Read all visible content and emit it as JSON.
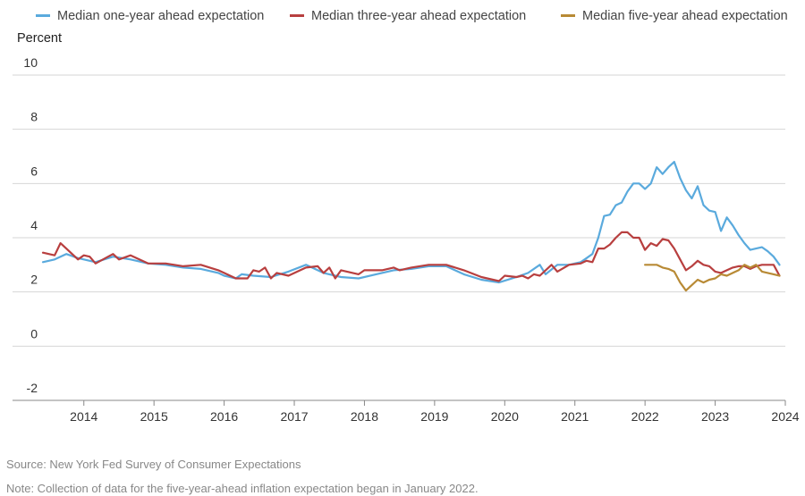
{
  "chart_data": {
    "type": "line",
    "ylabel": "Percent",
    "ylim": [
      -2,
      10
    ],
    "yticks": [
      -2,
      0,
      2,
      4,
      6,
      8,
      10
    ],
    "xlim": [
      "2013-06",
      "2024-01"
    ],
    "xticks": [
      "2014",
      "2015",
      "2016",
      "2017",
      "2018",
      "2019",
      "2020",
      "2021",
      "2022",
      "2023",
      "2024"
    ],
    "grid": "horizontal",
    "legend_position": "top",
    "series": [
      {
        "name": "Median one-year ahead expectation",
        "color": "#5aaadd",
        "points": [
          [
            "2013-06",
            3.1
          ],
          [
            "2013-08",
            3.2
          ],
          [
            "2013-10",
            3.4
          ],
          [
            "2013-12",
            3.25
          ],
          [
            "2014-03",
            3.1
          ],
          [
            "2014-06",
            3.3
          ],
          [
            "2014-09",
            3.2
          ],
          [
            "2014-12",
            3.05
          ],
          [
            "2015-03",
            3.0
          ],
          [
            "2015-06",
            2.9
          ],
          [
            "2015-09",
            2.85
          ],
          [
            "2015-12",
            2.7
          ],
          [
            "2016-01",
            2.6
          ],
          [
            "2016-02",
            2.55
          ],
          [
            "2016-03",
            2.5
          ],
          [
            "2016-04",
            2.65
          ],
          [
            "2016-06",
            2.6
          ],
          [
            "2016-09",
            2.55
          ],
          [
            "2016-12",
            2.75
          ],
          [
            "2017-03",
            3.0
          ],
          [
            "2017-06",
            2.7
          ],
          [
            "2017-09",
            2.55
          ],
          [
            "2017-12",
            2.5
          ],
          [
            "2018-03",
            2.65
          ],
          [
            "2018-06",
            2.8
          ],
          [
            "2018-09",
            2.85
          ],
          [
            "2018-12",
            2.95
          ],
          [
            "2019-03",
            2.95
          ],
          [
            "2019-06",
            2.65
          ],
          [
            "2019-09",
            2.45
          ],
          [
            "2019-12",
            2.35
          ],
          [
            "2020-03",
            2.55
          ],
          [
            "2020-05",
            2.7
          ],
          [
            "2020-07",
            3.0
          ],
          [
            "2020-08",
            2.65
          ],
          [
            "2020-10",
            3.0
          ],
          [
            "2020-12",
            3.0
          ],
          [
            "2021-01",
            3.05
          ],
          [
            "2021-02",
            3.1
          ],
          [
            "2021-03",
            3.25
          ],
          [
            "2021-04",
            3.4
          ],
          [
            "2021-05",
            4.0
          ],
          [
            "2021-06",
            4.8
          ],
          [
            "2021-07",
            4.85
          ],
          [
            "2021-08",
            5.2
          ],
          [
            "2021-09",
            5.3
          ],
          [
            "2021-10",
            5.7
          ],
          [
            "2021-11",
            6.0
          ],
          [
            "2021-12",
            6.0
          ],
          [
            "2022-01",
            5.8
          ],
          [
            "2022-02",
            6.0
          ],
          [
            "2022-03",
            6.6
          ],
          [
            "2022-04",
            6.35
          ],
          [
            "2022-05",
            6.6
          ],
          [
            "2022-06",
            6.8
          ],
          [
            "2022-07",
            6.2
          ],
          [
            "2022-08",
            5.75
          ],
          [
            "2022-09",
            5.45
          ],
          [
            "2022-10",
            5.9
          ],
          [
            "2022-11",
            5.2
          ],
          [
            "2022-12",
            5.0
          ],
          [
            "2023-01",
            4.95
          ],
          [
            "2023-02",
            4.25
          ],
          [
            "2023-03",
            4.75
          ],
          [
            "2023-04",
            4.45
          ],
          [
            "2023-05",
            4.1
          ],
          [
            "2023-06",
            3.8
          ],
          [
            "2023-07",
            3.55
          ],
          [
            "2023-08",
            3.6
          ],
          [
            "2023-09",
            3.65
          ],
          [
            "2023-10",
            3.5
          ],
          [
            "2023-11",
            3.3
          ],
          [
            "2023-12",
            3.0
          ]
        ]
      },
      {
        "name": "Median three-year ahead expectation",
        "color": "#b83f3f",
        "points": [
          [
            "2013-06",
            3.45
          ],
          [
            "2013-08",
            3.35
          ],
          [
            "2013-09",
            3.8
          ],
          [
            "2013-10",
            3.6
          ],
          [
            "2013-12",
            3.2
          ],
          [
            "2014-01",
            3.35
          ],
          [
            "2014-02",
            3.3
          ],
          [
            "2014-03",
            3.05
          ],
          [
            "2014-06",
            3.4
          ],
          [
            "2014-07",
            3.2
          ],
          [
            "2014-09",
            3.35
          ],
          [
            "2014-12",
            3.05
          ],
          [
            "2015-03",
            3.05
          ],
          [
            "2015-06",
            2.95
          ],
          [
            "2015-09",
            3.0
          ],
          [
            "2015-12",
            2.8
          ],
          [
            "2016-01",
            2.7
          ],
          [
            "2016-03",
            2.5
          ],
          [
            "2016-05",
            2.5
          ],
          [
            "2016-06",
            2.8
          ],
          [
            "2016-07",
            2.75
          ],
          [
            "2016-08",
            2.9
          ],
          [
            "2016-09",
            2.5
          ],
          [
            "2016-10",
            2.7
          ],
          [
            "2016-12",
            2.6
          ],
          [
            "2017-03",
            2.9
          ],
          [
            "2017-05",
            2.95
          ],
          [
            "2017-06",
            2.7
          ],
          [
            "2017-07",
            2.9
          ],
          [
            "2017-08",
            2.5
          ],
          [
            "2017-09",
            2.8
          ],
          [
            "2017-12",
            2.65
          ],
          [
            "2018-01",
            2.8
          ],
          [
            "2018-04",
            2.8
          ],
          [
            "2018-06",
            2.9
          ],
          [
            "2018-07",
            2.8
          ],
          [
            "2018-09",
            2.9
          ],
          [
            "2018-12",
            3.0
          ],
          [
            "2019-03",
            3.0
          ],
          [
            "2019-06",
            2.8
          ],
          [
            "2019-09",
            2.55
          ],
          [
            "2019-12",
            2.4
          ],
          [
            "2020-01",
            2.6
          ],
          [
            "2020-03",
            2.55
          ],
          [
            "2020-04",
            2.6
          ],
          [
            "2020-05",
            2.5
          ],
          [
            "2020-06",
            2.65
          ],
          [
            "2020-07",
            2.6
          ],
          [
            "2020-09",
            3.0
          ],
          [
            "2020-10",
            2.75
          ],
          [
            "2020-12",
            3.0
          ],
          [
            "2021-02",
            3.05
          ],
          [
            "2021-03",
            3.15
          ],
          [
            "2021-04",
            3.1
          ],
          [
            "2021-05",
            3.6
          ],
          [
            "2021-06",
            3.6
          ],
          [
            "2021-07",
            3.75
          ],
          [
            "2021-08",
            4.0
          ],
          [
            "2021-09",
            4.2
          ],
          [
            "2021-10",
            4.2
          ],
          [
            "2021-11",
            4.0
          ],
          [
            "2021-12",
            4.0
          ],
          [
            "2022-01",
            3.55
          ],
          [
            "2022-02",
            3.8
          ],
          [
            "2022-03",
            3.7
          ],
          [
            "2022-04",
            3.95
          ],
          [
            "2022-05",
            3.9
          ],
          [
            "2022-06",
            3.6
          ],
          [
            "2022-07",
            3.2
          ],
          [
            "2022-08",
            2.8
          ],
          [
            "2022-09",
            2.95
          ],
          [
            "2022-10",
            3.15
          ],
          [
            "2022-11",
            3.0
          ],
          [
            "2022-12",
            2.95
          ],
          [
            "2023-01",
            2.75
          ],
          [
            "2023-02",
            2.7
          ],
          [
            "2023-03",
            2.8
          ],
          [
            "2023-04",
            2.9
          ],
          [
            "2023-05",
            2.95
          ],
          [
            "2023-06",
            2.95
          ],
          [
            "2023-07",
            2.85
          ],
          [
            "2023-08",
            2.95
          ],
          [
            "2023-09",
            3.0
          ],
          [
            "2023-10",
            3.0
          ],
          [
            "2023-11",
            3.0
          ],
          [
            "2023-12",
            2.6
          ]
        ]
      },
      {
        "name": "Median five-year ahead expectation",
        "color": "#b88a35",
        "points": [
          [
            "2022-01",
            3.0
          ],
          [
            "2022-02",
            3.0
          ],
          [
            "2022-03",
            3.0
          ],
          [
            "2022-04",
            2.9
          ],
          [
            "2022-05",
            2.85
          ],
          [
            "2022-06",
            2.75
          ],
          [
            "2022-07",
            2.35
          ],
          [
            "2022-08",
            2.05
          ],
          [
            "2022-09",
            2.25
          ],
          [
            "2022-10",
            2.45
          ],
          [
            "2022-11",
            2.35
          ],
          [
            "2022-12",
            2.45
          ],
          [
            "2023-01",
            2.5
          ],
          [
            "2023-02",
            2.65
          ],
          [
            "2023-03",
            2.6
          ],
          [
            "2023-04",
            2.7
          ],
          [
            "2023-05",
            2.8
          ],
          [
            "2023-06",
            3.0
          ],
          [
            "2023-07",
            2.9
          ],
          [
            "2023-08",
            3.0
          ],
          [
            "2023-09",
            2.75
          ],
          [
            "2023-10",
            2.7
          ],
          [
            "2023-11",
            2.65
          ],
          [
            "2023-12",
            2.6
          ]
        ]
      }
    ]
  },
  "footer": {
    "source": "Source: New York Fed Survey of Consumer Expectations",
    "note": "Note: Collection of data for the five-year-ahead inflation expectation began in January 2022."
  }
}
